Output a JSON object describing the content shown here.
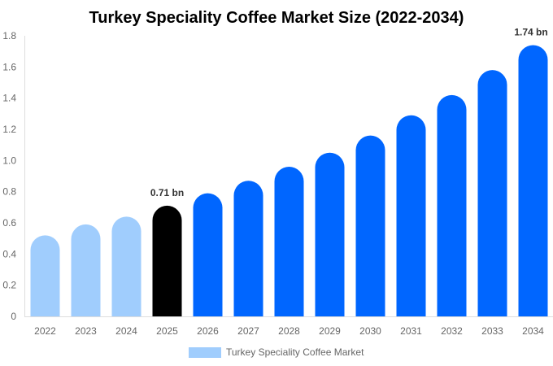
{
  "chart_data": {
    "type": "bar",
    "title": "Turkey Speciality Coffee Market Size (2022-2034)",
    "xlabel": "",
    "ylabel": "",
    "ylim": [
      0,
      1.8
    ],
    "yticks": [
      "0",
      "0.2",
      "0.4",
      "0.6",
      "0.8",
      "1.0",
      "1.2",
      "1.4",
      "1.6",
      "1.8"
    ],
    "grid": false,
    "legend_position": "bottom",
    "categories": [
      "2022",
      "2023",
      "2024",
      "2025",
      "2026",
      "2027",
      "2028",
      "2029",
      "2030",
      "2031",
      "2032",
      "2033",
      "2034"
    ],
    "series": [
      {
        "name": "Turkey Speciality Coffee Market",
        "values": [
          0.52,
          0.59,
          0.64,
          0.71,
          0.79,
          0.87,
          0.96,
          1.05,
          1.16,
          1.29,
          1.42,
          1.58,
          1.74
        ]
      }
    ],
    "bar_colors": [
      "#a0cdfd",
      "#a0cdfd",
      "#a0cdfd",
      "#000000",
      "#0066ff",
      "#0066ff",
      "#0066ff",
      "#0066ff",
      "#0066ff",
      "#0066ff",
      "#0066ff",
      "#0066ff",
      "#0066ff"
    ],
    "legend_color": "#a0cdfd",
    "annotations": [
      {
        "category": "2025",
        "text": "0.71 bn"
      },
      {
        "category": "2034",
        "text": "1.74 bn"
      }
    ]
  }
}
